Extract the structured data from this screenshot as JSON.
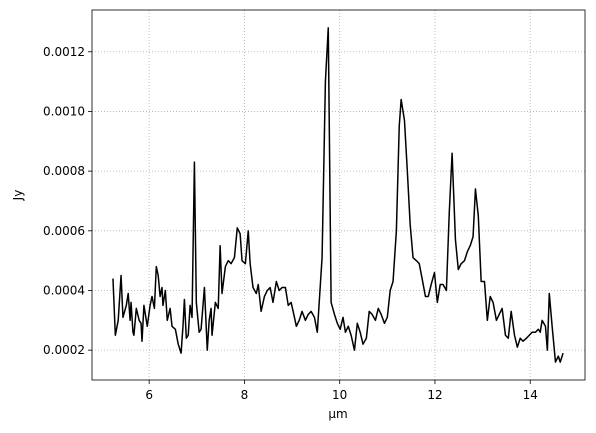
{
  "chart_data": {
    "type": "line",
    "xlabel": "μm",
    "ylabel": "Jy",
    "grid": true,
    "xlim": [
      4.8,
      15.15
    ],
    "xticks": [
      6,
      8,
      10,
      12,
      14
    ],
    "ylim": [
      0.0001,
      0.00134
    ],
    "yticks": [
      0.0002,
      0.0004,
      0.0006,
      0.0008,
      {
        "value": 0.001,
        "label": "0.0010"
      },
      0.0012
    ],
    "x": [
      5.24,
      5.29,
      5.35,
      5.41,
      5.45,
      5.52,
      5.56,
      5.6,
      5.62,
      5.66,
      5.68,
      5.73,
      5.79,
      5.83,
      5.85,
      5.89,
      5.96,
      6.02,
      6.06,
      6.11,
      6.15,
      6.19,
      6.23,
      6.27,
      6.29,
      6.34,
      6.38,
      6.44,
      6.48,
      6.55,
      6.61,
      6.67,
      6.71,
      6.74,
      6.78,
      6.82,
      6.86,
      6.9,
      6.95,
      6.99,
      7.05,
      7.09,
      7.16,
      7.22,
      7.26,
      7.3,
      7.32,
      7.39,
      7.45,
      7.49,
      7.53,
      7.6,
      7.66,
      7.72,
      7.79,
      7.85,
      7.91,
      7.95,
      8.02,
      8.08,
      8.12,
      8.18,
      8.25,
      8.29,
      8.35,
      8.42,
      8.48,
      8.54,
      8.6,
      8.67,
      8.73,
      8.79,
      8.86,
      8.92,
      8.98,
      9.05,
      9.09,
      9.15,
      9.21,
      9.28,
      9.34,
      9.4,
      9.47,
      9.53,
      9.57,
      9.63,
      9.7,
      9.76,
      9.82,
      9.89,
      9.95,
      10.01,
      10.07,
      10.12,
      10.18,
      10.24,
      10.31,
      10.37,
      10.43,
      10.49,
      10.56,
      10.62,
      10.68,
      10.75,
      10.81,
      10.87,
      10.94,
      11.0,
      11.06,
      11.12,
      11.19,
      11.25,
      11.29,
      11.36,
      11.42,
      11.48,
      11.54,
      11.61,
      11.67,
      11.73,
      11.8,
      11.86,
      11.92,
      11.99,
      12.05,
      12.11,
      12.17,
      12.24,
      12.3,
      12.36,
      12.43,
      12.49,
      12.55,
      12.62,
      12.68,
      12.74,
      12.8,
      12.85,
      12.91,
      12.97,
      13.04,
      13.1,
      13.16,
      13.22,
      13.29,
      13.35,
      13.41,
      13.48,
      13.54,
      13.6,
      13.67,
      13.73,
      13.79,
      13.85,
      13.92,
      13.98,
      14.04,
      14.11,
      14.17,
      14.21,
      14.25,
      14.32,
      14.36,
      14.4,
      14.46,
      14.53,
      14.59,
      14.63,
      14.69
    ],
    "series": [
      {
        "color": "#000000",
        "values": [
          0.00044,
          0.00025,
          0.0003,
          0.00045,
          0.00031,
          0.00035,
          0.00039,
          0.0003,
          0.00036,
          0.00026,
          0.00025,
          0.00034,
          0.0003,
          0.00029,
          0.00023,
          0.00035,
          0.00028,
          0.00035,
          0.00038,
          0.00034,
          0.00048,
          0.00045,
          0.00038,
          0.00041,
          0.00035,
          0.0004,
          0.0003,
          0.00034,
          0.00028,
          0.00027,
          0.00022,
          0.00019,
          0.00028,
          0.00037,
          0.00024,
          0.00025,
          0.00035,
          0.00031,
          0.00083,
          0.00036,
          0.00026,
          0.00027,
          0.00041,
          0.0002,
          0.0003,
          0.00034,
          0.00025,
          0.00036,
          0.00034,
          0.00055,
          0.00039,
          0.00048,
          0.0005,
          0.00049,
          0.00051,
          0.00061,
          0.00059,
          0.0005,
          0.00049,
          0.0006,
          0.00049,
          0.00041,
          0.00039,
          0.00042,
          0.00033,
          0.00038,
          0.0004,
          0.00041,
          0.00036,
          0.00043,
          0.0004,
          0.00041,
          0.00041,
          0.00035,
          0.00036,
          0.00031,
          0.00028,
          0.0003,
          0.00033,
          0.0003,
          0.00032,
          0.00033,
          0.00031,
          0.00026,
          0.00036,
          0.00051,
          0.0011,
          0.00128,
          0.00036,
          0.00032,
          0.00029,
          0.00027,
          0.00031,
          0.00026,
          0.00028,
          0.00025,
          0.0002,
          0.00029,
          0.00026,
          0.00022,
          0.00024,
          0.00033,
          0.00032,
          0.0003,
          0.00034,
          0.00032,
          0.00029,
          0.00031,
          0.0004,
          0.00043,
          0.0006,
          0.00095,
          0.00104,
          0.00097,
          0.0008,
          0.00062,
          0.00051,
          0.0005,
          0.00049,
          0.00044,
          0.00038,
          0.00038,
          0.00042,
          0.00046,
          0.00036,
          0.00042,
          0.00042,
          0.0004,
          0.00066,
          0.00086,
          0.00057,
          0.00047,
          0.00049,
          0.0005,
          0.00053,
          0.00055,
          0.00058,
          0.00074,
          0.00065,
          0.00043,
          0.00043,
          0.0003,
          0.00038,
          0.00036,
          0.0003,
          0.00032,
          0.00034,
          0.00025,
          0.00024,
          0.00033,
          0.00025,
          0.00021,
          0.00024,
          0.00023,
          0.00024,
          0.00025,
          0.00026,
          0.00026,
          0.00027,
          0.00026,
          0.0003,
          0.00028,
          0.0002,
          0.00039,
          0.00028,
          0.00016,
          0.00018,
          0.00016,
          0.00019
        ]
      }
    ]
  }
}
